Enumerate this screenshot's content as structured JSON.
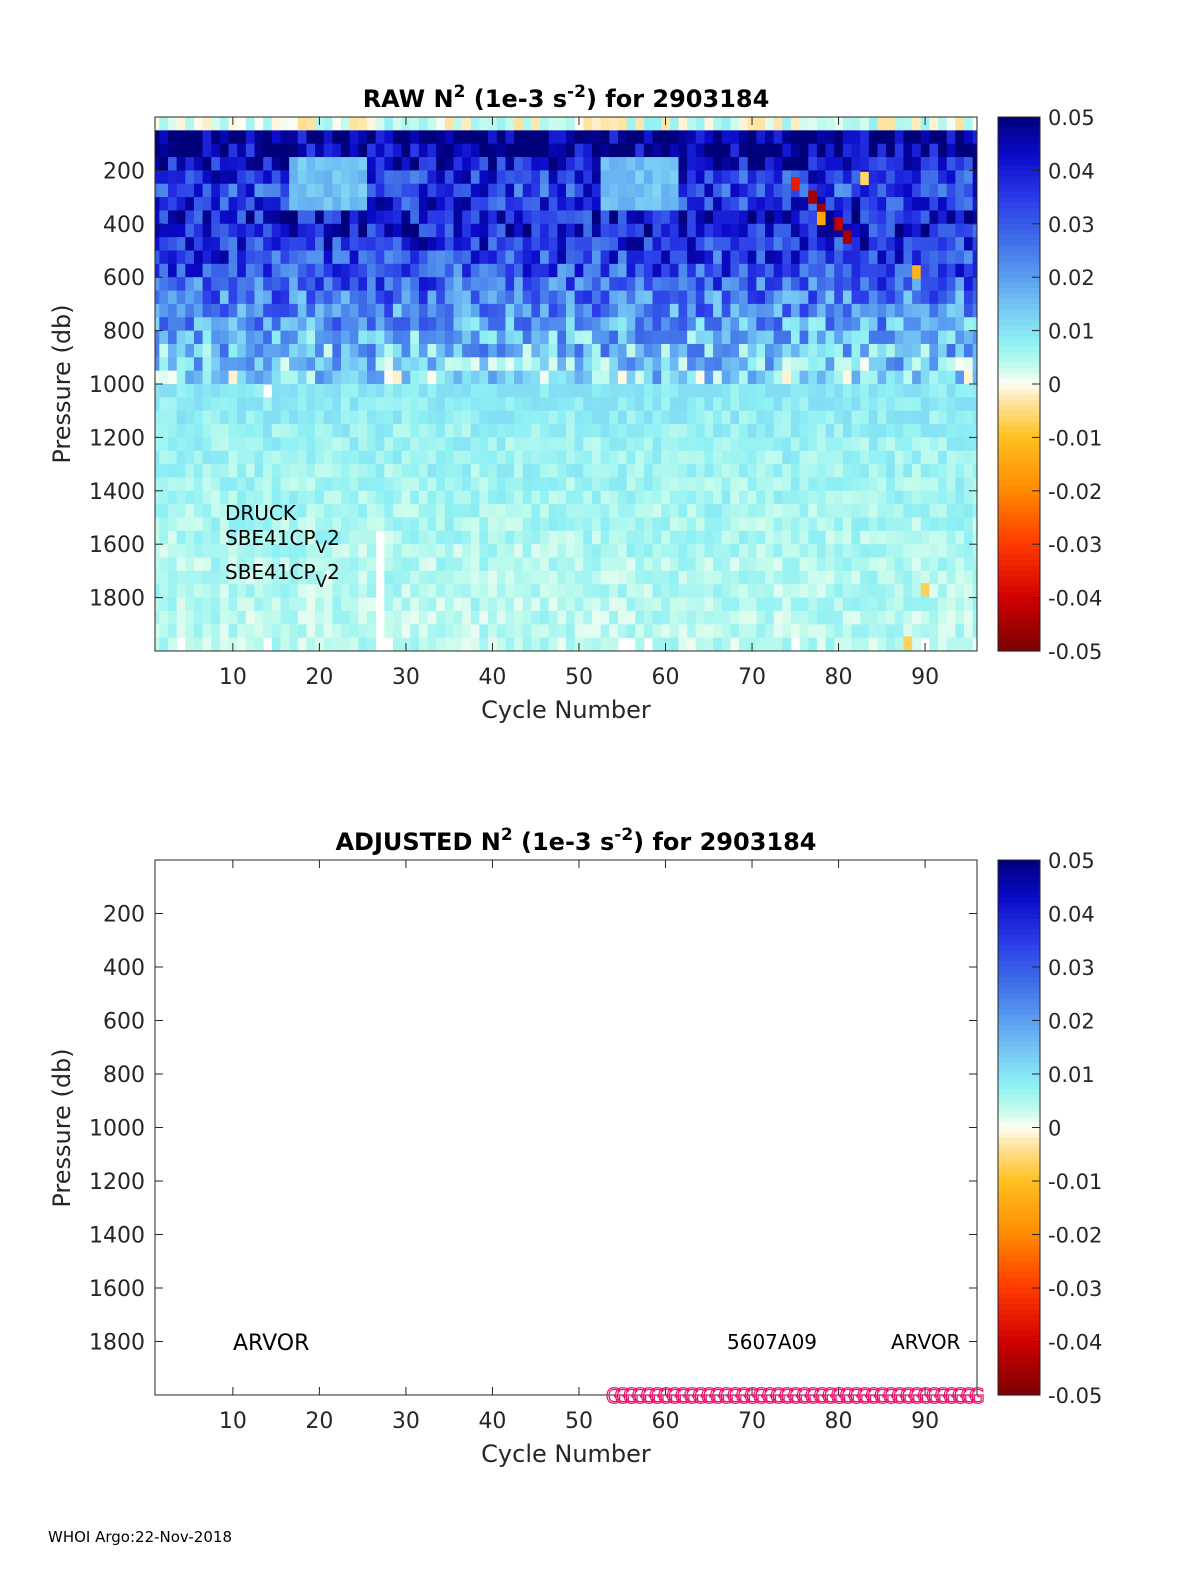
{
  "chart_data": [
    {
      "type": "heatmap",
      "title": {
        "prefix": "RAW N",
        "sup1": "2",
        "mid": " (1e-3 s",
        "sup2": "-2",
        "suffix": ") for 2903184"
      },
      "xlabel": "Cycle Number",
      "ylabel": "Pressure (db)",
      "xlim": [
        1,
        96
      ],
      "ylim": [
        0,
        2000
      ],
      "y_reversed": true,
      "xticks": [
        "10",
        "20",
        "30",
        "40",
        "50",
        "60",
        "70",
        "80",
        "90"
      ],
      "yticks": [
        "200",
        "400",
        "600",
        "800",
        "1000",
        "1200",
        "1400",
        "1600",
        "1800"
      ],
      "cycles": 96,
      "pressure_bin_db": 50,
      "depth_profile": [
        {
          "p": 0,
          "v": 0.004
        },
        {
          "p": 50,
          "v": 0.05
        },
        {
          "p": 150,
          "v": 0.045
        },
        {
          "p": 250,
          "v": 0.032
        },
        {
          "p": 400,
          "v": 0.04
        },
        {
          "p": 600,
          "v": 0.03
        },
        {
          "p": 800,
          "v": 0.018
        },
        {
          "p": 1000,
          "v": 0.01
        },
        {
          "p": 1200,
          "v": 0.007
        },
        {
          "p": 1600,
          "v": 0.005
        },
        {
          "p": 2000,
          "v": 0.004
        }
      ],
      "noise_amplitude": 0.008,
      "missing": [
        {
          "cycle": 27,
          "p_from": 1550,
          "p_to": 2000
        },
        {
          "cycle": 4,
          "p_from": 1950,
          "p_to": 2000
        },
        {
          "cycle": 14,
          "p_from": 1950,
          "p_to": 2000
        },
        {
          "cycle": 14,
          "p_from": 1000,
          "p_to": 1050
        },
        {
          "cycle": 28,
          "p_from": 1950,
          "p_to": 2000
        },
        {
          "cycle": 55,
          "p_from": 1950,
          "p_to": 2000
        },
        {
          "cycle": 56,
          "p_from": 1950,
          "p_to": 2000
        },
        {
          "cycle": 58,
          "p_from": 1950,
          "p_to": 2000
        },
        {
          "cycle": 75,
          "p_from": 1950,
          "p_to": 2000
        },
        {
          "cycle": 90,
          "p_from": 1950,
          "p_to": 2000
        }
      ],
      "anomalies": [
        {
          "cycle": 75,
          "p": 250,
          "v": -0.035
        },
        {
          "cycle": 77,
          "p": 300,
          "v": -0.045
        },
        {
          "cycle": 78,
          "p": 350,
          "v": -0.045
        },
        {
          "cycle": 78,
          "p": 380,
          "v": -0.015
        },
        {
          "cycle": 80,
          "p": 400,
          "v": -0.042
        },
        {
          "cycle": 81,
          "p": 450,
          "v": -0.045
        },
        {
          "cycle": 89,
          "p": 580,
          "v": -0.012
        },
        {
          "cycle": 90,
          "p": 1770,
          "v": -0.007
        },
        {
          "cycle": 88,
          "p": 1970,
          "v": -0.007
        },
        {
          "cycle": 83,
          "p": 230,
          "v": -0.006
        }
      ],
      "annotations": [
        "DRUCK",
        "SBE41CP",
        "V",
        "2"
      ],
      "colorbar": {
        "ticks": [
          "0.05",
          "0.04",
          "0.03",
          "0.02",
          "0.01",
          "0",
          "-0.01",
          "-0.02",
          "-0.03",
          "-0.04",
          "-0.05"
        ],
        "range": [
          -0.05,
          0.05
        ]
      }
    },
    {
      "type": "heatmap",
      "title": {
        "prefix": "ADJUSTED N",
        "sup1": "2",
        "mid": " (1e-3 s",
        "sup2": "-2",
        "suffix": ") for 2903184"
      },
      "xlabel": "Cycle Number",
      "ylabel": "Pressure (db)",
      "xlim": [
        1,
        96
      ],
      "ylim": [
        0,
        2000
      ],
      "xticks": [
        "10",
        "20",
        "30",
        "40",
        "50",
        "60",
        "70",
        "80",
        "90"
      ],
      "yticks": [
        "200",
        "400",
        "600",
        "800",
        "1000",
        "1200",
        "1400",
        "1600",
        "1800"
      ],
      "values": [],
      "annotations": [
        "ARVOR",
        "5607A09",
        "ARVOR"
      ],
      "qc_marker": "G",
      "qc_cycles_from": 54,
      "qc_cycles_to": 96,
      "colorbar": {
        "ticks": [
          "0.05",
          "0.04",
          "0.03",
          "0.02",
          "0.01",
          "0",
          "-0.01",
          "-0.02",
          "-0.03",
          "-0.04",
          "-0.05"
        ],
        "range": [
          -0.05,
          0.05
        ]
      }
    }
  ],
  "colormap": [
    {
      "v": 0.05,
      "c": "#00007a"
    },
    {
      "v": 0.043,
      "c": "#0a0ac8"
    },
    {
      "v": 0.035,
      "c": "#2a3ae8"
    },
    {
      "v": 0.027,
      "c": "#3f6ee8"
    },
    {
      "v": 0.02,
      "c": "#5a9ef0"
    },
    {
      "v": 0.013,
      "c": "#7cd0f4"
    },
    {
      "v": 0.008,
      "c": "#8ef0f4"
    },
    {
      "v": 0.003,
      "c": "#c6fcec"
    },
    {
      "v": 0.0,
      "c": "#fffdf4"
    },
    {
      "v": -0.003,
      "c": "#ffe6a8"
    },
    {
      "v": -0.01,
      "c": "#ffc020"
    },
    {
      "v": -0.02,
      "c": "#ff8a00"
    },
    {
      "v": -0.03,
      "c": "#ff3a00"
    },
    {
      "v": -0.04,
      "c": "#d00000"
    },
    {
      "v": -0.05,
      "c": "#7a0000"
    }
  ],
  "qc_color": "#e8106a",
  "footer": "WHOI Argo:22-Nov-2018"
}
